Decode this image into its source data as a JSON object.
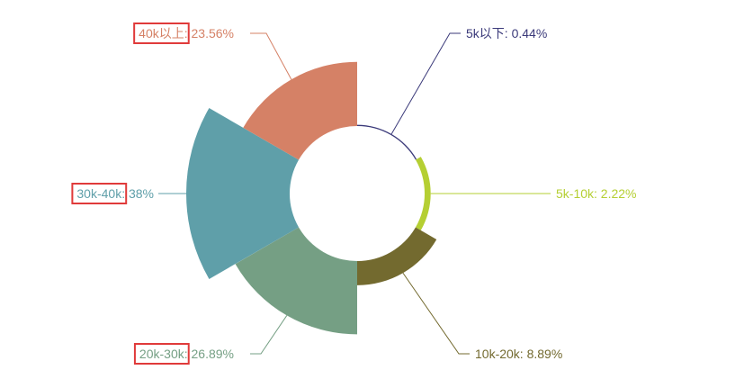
{
  "chart_data": {
    "type": "pie",
    "variant": "nightingale-rose",
    "slices": [
      {
        "label": "5k以下",
        "percent_text": "0.44%",
        "value": 0.44,
        "color": "#3b3a7a"
      },
      {
        "label": "5k-10k",
        "percent_text": "2.22%",
        "value": 2.22,
        "color": "#b5cf33"
      },
      {
        "label": "10k-20k",
        "percent_text": "8.89%",
        "value": 8.89,
        "color": "#736a2f"
      },
      {
        "label": "20k-30k",
        "percent_text": "26.89%",
        "value": 26.89,
        "color": "#759f84"
      },
      {
        "label": "30k-40k",
        "percent_text": "38%",
        "value": 38.0,
        "color": "#5f9fa9"
      },
      {
        "label": "40k以上",
        "percent_text": "23.56%",
        "value": 23.56,
        "color": "#d58166"
      }
    ],
    "highlighted_labels": [
      "40k以上",
      "30k-40k",
      "20k-30k"
    ],
    "highlight_color": "#e03a3a"
  }
}
